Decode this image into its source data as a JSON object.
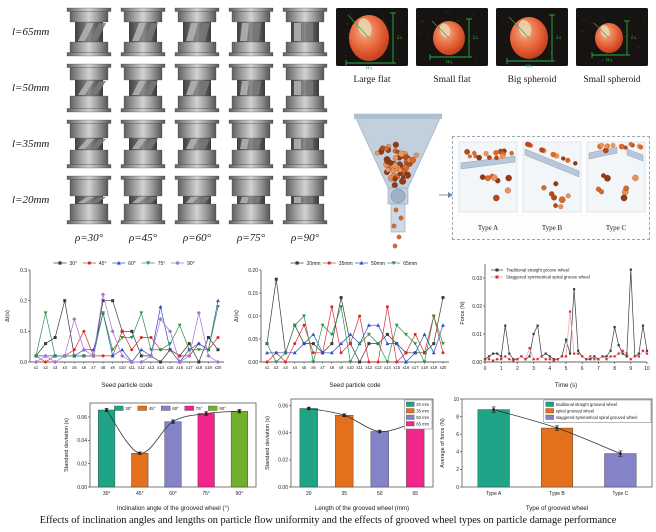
{
  "caption": "Effects of inclination angles and lengths on particle flow uniformity and the effects of grooved wheel types on particle damage performance",
  "wheel_panel": {
    "row_labels": [
      "l=65mm",
      "l=50mm",
      "l=35mm",
      "l=20mm"
    ],
    "col_labels": [
      "ρ=30°",
      "ρ=45°",
      "ρ=60°",
      "ρ=75°",
      "ρ=90°"
    ]
  },
  "seed_photos": {
    "items": [
      "Large flat",
      "Small flat",
      "Big spheroid",
      "Small spheroid"
    ],
    "annotations": [
      "Ls",
      "Ws"
    ]
  },
  "simulation": {
    "type_labels": [
      "Type A",
      "Type B",
      "Type C"
    ]
  },
  "palette": {
    "annotation_green": "#25b04c",
    "hopper_blue": "#c2cfdd",
    "particle_orange": "#d96a2e"
  },
  "chart_data": [
    {
      "id": "angle-line",
      "type": "line",
      "xlabel": "Seed particle code",
      "ylabel": "Δt(s)",
      "categories": [
        "x1",
        "x2",
        "x3",
        "x4",
        "x5",
        "x6",
        "x7",
        "x8",
        "x9",
        "x10",
        "x11",
        "x12",
        "x13",
        "x14",
        "x15",
        "x16",
        "x17",
        "x18",
        "x19",
        "x20"
      ],
      "ylim": [
        0,
        0.3
      ],
      "yticks": [
        "0.0",
        "0.1",
        "0.2",
        "0.3"
      ],
      "ytick_vals": [
        0,
        0.1,
        0.2,
        0.3
      ],
      "legend_position": "top-row",
      "grid": false,
      "series": [
        {
          "name": "30°",
          "color": "#3a3a3a",
          "marker": "square",
          "values": [
            0.02,
            0.06,
            0.08,
            0.2,
            0.02,
            0.02,
            0.02,
            0.2,
            0.2,
            0.1,
            0.1,
            0.02,
            0.02,
            0.0,
            0.04,
            0.02,
            0.06,
            0.0,
            0.08,
            0.04
          ]
        },
        {
          "name": "45°",
          "color": "#d62b2b",
          "marker": "circle",
          "values": [
            0.02,
            0.0,
            0.02,
            0.02,
            0.04,
            0.1,
            0.02,
            0.02,
            0.02,
            0.1,
            0.04,
            0.08,
            0.08,
            0.04,
            0.04,
            0.02,
            0.02,
            0.06,
            0.04,
            0.08
          ]
        },
        {
          "name": "60°",
          "color": "#2b4fc2",
          "marker": "triangle",
          "values": [
            0.02,
            0.02,
            0.02,
            0.02,
            0.02,
            0.04,
            0.04,
            0.16,
            0.02,
            0.04,
            0.0,
            0.04,
            0.02,
            0.18,
            0.04,
            0.0,
            0.04,
            0.06,
            0.04,
            0.2
          ]
        },
        {
          "name": "75°",
          "color": "#2e8f4e",
          "marker": "tri-down",
          "values": [
            0.02,
            0.16,
            0.02,
            0.02,
            0.02,
            0.02,
            0.02,
            0.16,
            0.04,
            0.08,
            0.08,
            0.16,
            0.04,
            0.04,
            0.06,
            0.12,
            0.04,
            0.04,
            0.04,
            0.18
          ]
        },
        {
          "name": "90°",
          "color": "#a86fd4",
          "marker": "diamond",
          "values": [
            0.0,
            0.02,
            0.0,
            0.02,
            0.14,
            0.04,
            0.02,
            0.22,
            0.1,
            0.02,
            0.0,
            0.0,
            0.02,
            0.14,
            0.1,
            0.0,
            0.02,
            0.16,
            0.02,
            0.0
          ]
        }
      ]
    },
    {
      "id": "length-line",
      "type": "line",
      "xlabel": "Seed particle code",
      "ylabel": "Δt(s)",
      "categories": [
        "x1",
        "x2",
        "x3",
        "x4",
        "x5",
        "x6",
        "x7",
        "x8",
        "x9",
        "x10",
        "x11",
        "x12",
        "x13",
        "x14",
        "x15",
        "x16",
        "x17",
        "x18",
        "x19",
        "x20"
      ],
      "ylim": [
        0,
        0.2
      ],
      "yticks": [
        "0.00",
        "0.05",
        "0.10",
        "0.15",
        "0.20"
      ],
      "ytick_vals": [
        0,
        0.05,
        0.1,
        0.15,
        0.2
      ],
      "legend_position": "top-row",
      "grid": false,
      "series": [
        {
          "name": "20mm",
          "color": "#3a3a3a",
          "marker": "square",
          "values": [
            0.04,
            0.18,
            0.02,
            0.08,
            0.04,
            0.04,
            0.02,
            0.04,
            0.14,
            0.04,
            0.0,
            0.04,
            0.04,
            0.06,
            0.04,
            0.02,
            0.02,
            0.02,
            0.04,
            0.14
          ]
        },
        {
          "name": "35mm",
          "color": "#d62b2b",
          "marker": "circle",
          "values": [
            0.0,
            0.02,
            0.0,
            0.04,
            0.08,
            0.02,
            0.02,
            0.12,
            0.02,
            0.04,
            0.1,
            0.0,
            0.0,
            0.12,
            0.0,
            0.02,
            0.06,
            0.02,
            0.1,
            0.02
          ]
        },
        {
          "name": "50mm",
          "color": "#2b4fc2",
          "marker": "triangle",
          "values": [
            0.02,
            0.02,
            0.02,
            0.02,
            0.04,
            0.06,
            0.02,
            0.02,
            0.04,
            0.06,
            0.04,
            0.08,
            0.08,
            0.04,
            0.04,
            0.0,
            0.02,
            0.06,
            0.02,
            0.08
          ]
        },
        {
          "name": "65mm",
          "color": "#2e8f4e",
          "marker": "tri-down",
          "values": [
            0.04,
            0.0,
            0.02,
            0.08,
            0.1,
            0.0,
            0.08,
            0.06,
            0.12,
            0.0,
            0.04,
            0.06,
            0.04,
            0.0,
            0.08,
            0.06,
            0.04,
            0.0,
            0.1,
            0.04
          ]
        }
      ]
    },
    {
      "id": "force-line",
      "type": "line",
      "x_mode": "numeric",
      "xlabel": "Time (s)",
      "ylabel": "Force (N)",
      "xlim": [
        0,
        10
      ],
      "xticks": [
        0,
        1,
        2,
        3,
        4,
        5,
        6,
        7,
        8,
        9,
        10
      ],
      "x_start": 0,
      "x_step": 0.25,
      "ylim": [
        0,
        0.035
      ],
      "yticks": [
        "0.00",
        "0.01",
        "0.02",
        "0.03"
      ],
      "ytick_vals": [
        0,
        0.01,
        0.02,
        0.03
      ],
      "legend_position": "top-left-stack",
      "grid": false,
      "series": [
        {
          "name": "Traditional straight groove wheel",
          "color": "#3a3a3a",
          "marker": "square",
          "values": [
            0.001,
            0.002,
            0.003,
            0.003,
            0.002,
            0.013,
            0.003,
            0.001,
            0.001,
            0.002,
            0.001,
            0.002,
            0.01,
            0.013,
            0.002,
            0.003,
            0.002,
            0.001,
            0.001,
            0.002,
            0.008,
            0.003,
            0.026,
            0.004,
            0.002,
            0.001,
            0.001,
            0.002,
            0.001,
            0.002,
            0.002,
            0.004,
            0.0125,
            0.006,
            0.003,
            0.002,
            0.033,
            0.002,
            0.003,
            0.013,
            0.004
          ]
        },
        {
          "name": "Staggered symmetrical spiral groove wheel",
          "color": "#d03030",
          "line_color": "#e89b9b",
          "marker": "square",
          "values": [
            0.001,
            0.001,
            0.0005,
            0.001,
            0.001,
            0.002,
            0.001,
            0.0005,
            0.001,
            0.002,
            0.001,
            0.005,
            0.001,
            0.001,
            0.002,
            0.001,
            0.001,
            0.0005,
            0.001,
            0.002,
            0.002,
            0.018,
            0.003,
            0.003,
            0.002,
            0.001,
            0.002,
            0.001,
            0.001,
            0.002,
            0.001,
            0.002,
            0.002,
            0.003,
            0.004,
            0.003,
            0.001,
            0.002,
            0.002,
            0.004,
            0.003
          ]
        }
      ]
    },
    {
      "id": "angle-bars",
      "type": "bar",
      "xlabel": "Inclination angle of the grooved wheel (°)",
      "ylabel": "Standard deviation (s)",
      "categories": [
        "30°",
        "45°",
        "60°",
        "75°",
        "90°"
      ],
      "values": [
        0.066,
        0.029,
        0.056,
        0.063,
        0.065
      ],
      "errors": [
        0.0015,
        0.001,
        0.0015,
        0.0015,
        0.0015
      ],
      "bar_colors": [
        "#1fa487",
        "#e2701d",
        "#8583c8",
        "#f0268c",
        "#72b02a"
      ],
      "legend_labels": [
        "30°",
        "45°",
        "60°",
        "75°",
        "90°"
      ],
      "legend_position": "top-row",
      "curve": true,
      "ylim": [
        0,
        0.072
      ],
      "yticks": [
        "0.00",
        "0.02",
        "0.04",
        "0.06"
      ],
      "ytick_vals": [
        0,
        0.02,
        0.04,
        0.06
      ]
    },
    {
      "id": "length-bars",
      "type": "bar",
      "xlabel": "Length of the grooved wheel (mm)",
      "ylabel": "Standard deviation (s)",
      "categories": [
        "20",
        "35",
        "50",
        "65"
      ],
      "values": [
        0.058,
        0.053,
        0.041,
        0.048
      ],
      "errors": [
        0.001,
        0.001,
        0.001,
        0.001
      ],
      "bar_colors": [
        "#1fa487",
        "#e2701d",
        "#8583c8",
        "#f0268c"
      ],
      "legend_labels": [
        "20 mm",
        "35 mm",
        "50 mm",
        "65 mm"
      ],
      "legend_position": "top-right-box",
      "curve": true,
      "ylim": [
        0,
        0.065
      ],
      "yticks": [
        "0.00",
        "0.02",
        "0.04",
        "0.06"
      ],
      "ytick_vals": [
        0,
        0.02,
        0.04,
        0.06
      ]
    },
    {
      "id": "type-bars",
      "type": "bar",
      "xlabel": "Type of grooved wheel",
      "ylabel": "Average of force (N)",
      "categories": [
        "Type A",
        "Type B",
        "Type C"
      ],
      "values": [
        8.8,
        6.7,
        3.8
      ],
      "errors": [
        0.3,
        0.25,
        0.3
      ],
      "bar_colors": [
        "#1fa487",
        "#e2701d",
        "#8583c8"
      ],
      "legend_labels": [
        "traditional straight grooved wheel",
        "spiral grooved wheel",
        "staggered symmetrical spiral grooved wheel"
      ],
      "legend_position": "top-right-box",
      "curve": true,
      "ylim": [
        0,
        10
      ],
      "yticks": [
        "0",
        "2",
        "4",
        "6",
        "8",
        "10"
      ],
      "ytick_vals": [
        0,
        2,
        4,
        6,
        8,
        10
      ]
    }
  ]
}
